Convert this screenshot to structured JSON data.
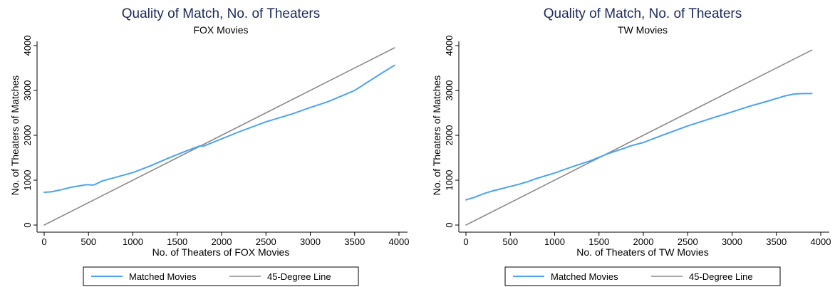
{
  "colors": {
    "matched": "#4aa3f0",
    "diagonal": "#8c8c8c",
    "title": "#1a2a5a"
  },
  "chart_data": [
    {
      "type": "line",
      "title": "Quality of Match, No. of Theaters",
      "subtitle": "FOX Movies",
      "xlabel": "No. of Theaters of FOX Movies",
      "ylabel": "No. of Theaters of Matches",
      "xlim": [
        0,
        4000
      ],
      "ylim": [
        0,
        4000
      ],
      "xticks": [
        0,
        500,
        1000,
        1500,
        2000,
        2500,
        3000,
        3500,
        4000
      ],
      "yticks": [
        0,
        1000,
        2000,
        3000,
        4000
      ],
      "grid": false,
      "legend_position": "bottom",
      "series": [
        {
          "name": "Matched Movies",
          "x": [
            0,
            80,
            200,
            300,
            400,
            480,
            550,
            580,
            650,
            800,
            1000,
            1200,
            1400,
            1600,
            1750,
            1800,
            2000,
            2200,
            2500,
            2800,
            3000,
            3200,
            3500,
            3800,
            3950
          ],
          "y": [
            730,
            740,
            790,
            840,
            875,
            900,
            890,
            910,
            980,
            1060,
            1170,
            1320,
            1490,
            1650,
            1760,
            1760,
            1920,
            2080,
            2300,
            2480,
            2620,
            2750,
            3000,
            3380,
            3560
          ]
        },
        {
          "name": "45-Degree Line",
          "x": [
            0,
            3950
          ],
          "y": [
            0,
            3950
          ]
        }
      ]
    },
    {
      "type": "line",
      "title": "Quality of Match, No. of Theaters",
      "subtitle": "TW Movies",
      "xlabel": "No. of Theaters of TW Movies",
      "ylabel": "No. of Theaters of Matches",
      "xlim": [
        0,
        4000
      ],
      "ylim": [
        0,
        4000
      ],
      "xticks": [
        0,
        500,
        1000,
        1500,
        2000,
        2500,
        3000,
        3500,
        4000
      ],
      "yticks": [
        0,
        1000,
        2000,
        3000,
        4000
      ],
      "grid": false,
      "legend_position": "bottom",
      "series": [
        {
          "name": "Matched Movies",
          "x": [
            0,
            100,
            200,
            300,
            400,
            500,
            600,
            700,
            800,
            1000,
            1200,
            1400,
            1600,
            1800,
            1850,
            2000,
            2200,
            2500,
            2800,
            3000,
            3200,
            3400,
            3600,
            3700,
            3800,
            3900
          ],
          "y": [
            560,
            620,
            700,
            760,
            810,
            860,
            910,
            970,
            1040,
            1160,
            1300,
            1430,
            1590,
            1720,
            1760,
            1840,
            1990,
            2210,
            2400,
            2520,
            2650,
            2760,
            2880,
            2920,
            2930,
            2930
          ]
        },
        {
          "name": "45-Degree Line",
          "x": [
            0,
            3900
          ],
          "y": [
            0,
            3900
          ]
        }
      ]
    }
  ]
}
